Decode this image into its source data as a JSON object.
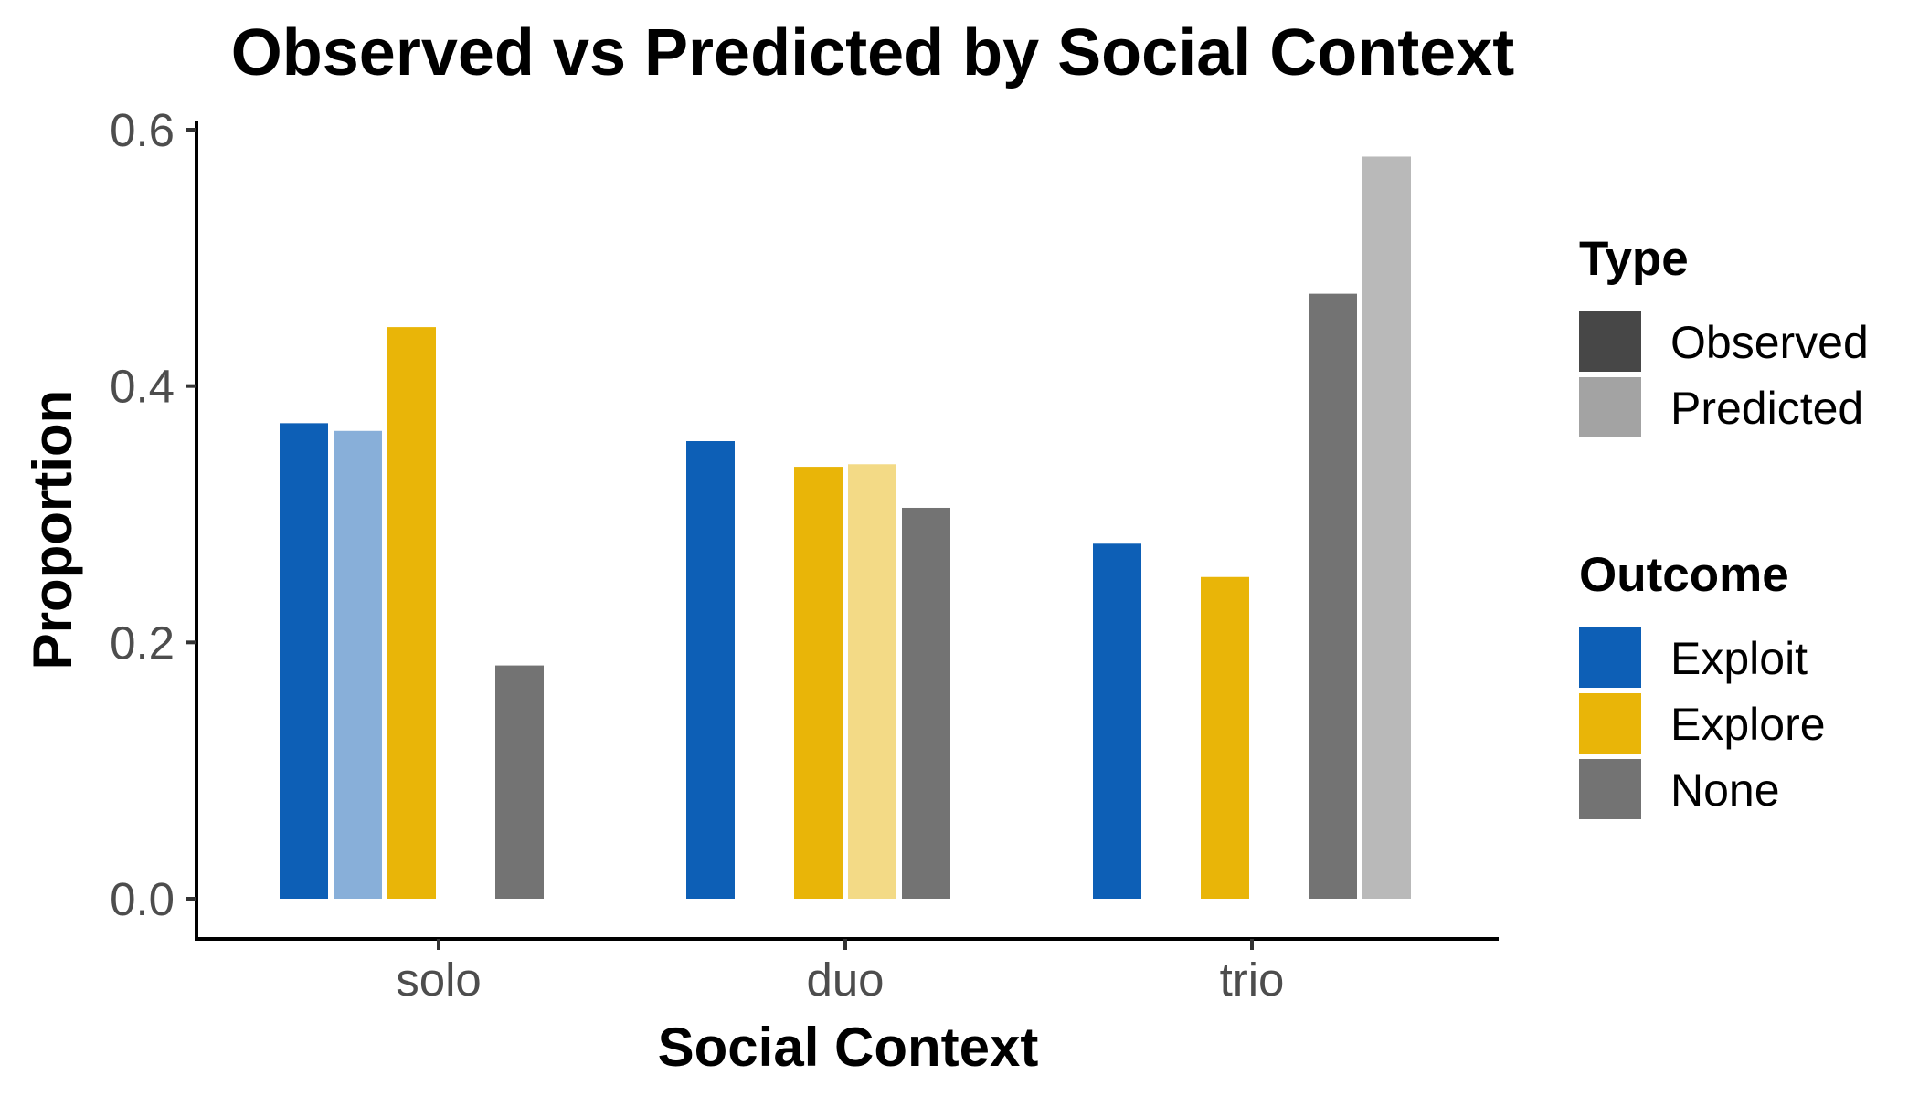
{
  "chart_data": {
    "type": "bar",
    "title": "Observed vs Predicted by Social Context",
    "xlabel": "Social Context",
    "ylabel": "Proportion",
    "categories": [
      "solo",
      "duo",
      "trio"
    ],
    "ylim": [
      0,
      0.6
    ],
    "yticks": [
      0.0,
      0.2,
      0.4,
      0.6
    ],
    "ytick_labels": [
      "0.0",
      "0.2",
      "0.4",
      "0.6"
    ],
    "grid": false,
    "legend_position": "right",
    "slots": [
      {
        "outcome": "Exploit",
        "type": "Observed"
      },
      {
        "outcome": "Exploit",
        "type": "Predicted"
      },
      {
        "outcome": "Explore",
        "type": "Observed"
      },
      {
        "outcome": "Explore",
        "type": "Predicted"
      },
      {
        "outcome": "None",
        "type": "Observed"
      },
      {
        "outcome": "None",
        "type": "Predicted"
      }
    ],
    "series": [
      {
        "outcome": "Exploit",
        "type": "Observed",
        "values": [
          0.371,
          0.357,
          0.277
        ]
      },
      {
        "outcome": "Exploit",
        "type": "Predicted",
        "values": [
          0.365,
          null,
          null
        ]
      },
      {
        "outcome": "Explore",
        "type": "Observed",
        "values": [
          0.446,
          0.337,
          0.251
        ]
      },
      {
        "outcome": "Explore",
        "type": "Predicted",
        "values": [
          null,
          0.339,
          null
        ]
      },
      {
        "outcome": "None",
        "type": "Observed",
        "values": [
          0.182,
          0.305,
          0.472
        ]
      },
      {
        "outcome": "None",
        "type": "Predicted",
        "values": [
          null,
          null,
          0.579
        ]
      }
    ],
    "colors": {
      "Exploit": {
        "Observed": "#0d5fb6",
        "Predicted": "#88afd9"
      },
      "Explore": {
        "Observed": "#e9b508",
        "Predicted": "#f3da86"
      },
      "None": {
        "Observed": "#737373",
        "Predicted": "#b9b9b9"
      }
    },
    "legend": {
      "type": {
        "title": "Type",
        "items": [
          {
            "label": "Observed",
            "color": "#474747"
          },
          {
            "label": "Predicted",
            "color": "#a3a3a3"
          }
        ]
      },
      "outcome": {
        "title": "Outcome",
        "items": [
          {
            "label": "Exploit",
            "color": "#0d5fb6"
          },
          {
            "label": "Explore",
            "color": "#e9b508"
          },
          {
            "label": "None",
            "color": "#737373"
          }
        ]
      }
    }
  }
}
